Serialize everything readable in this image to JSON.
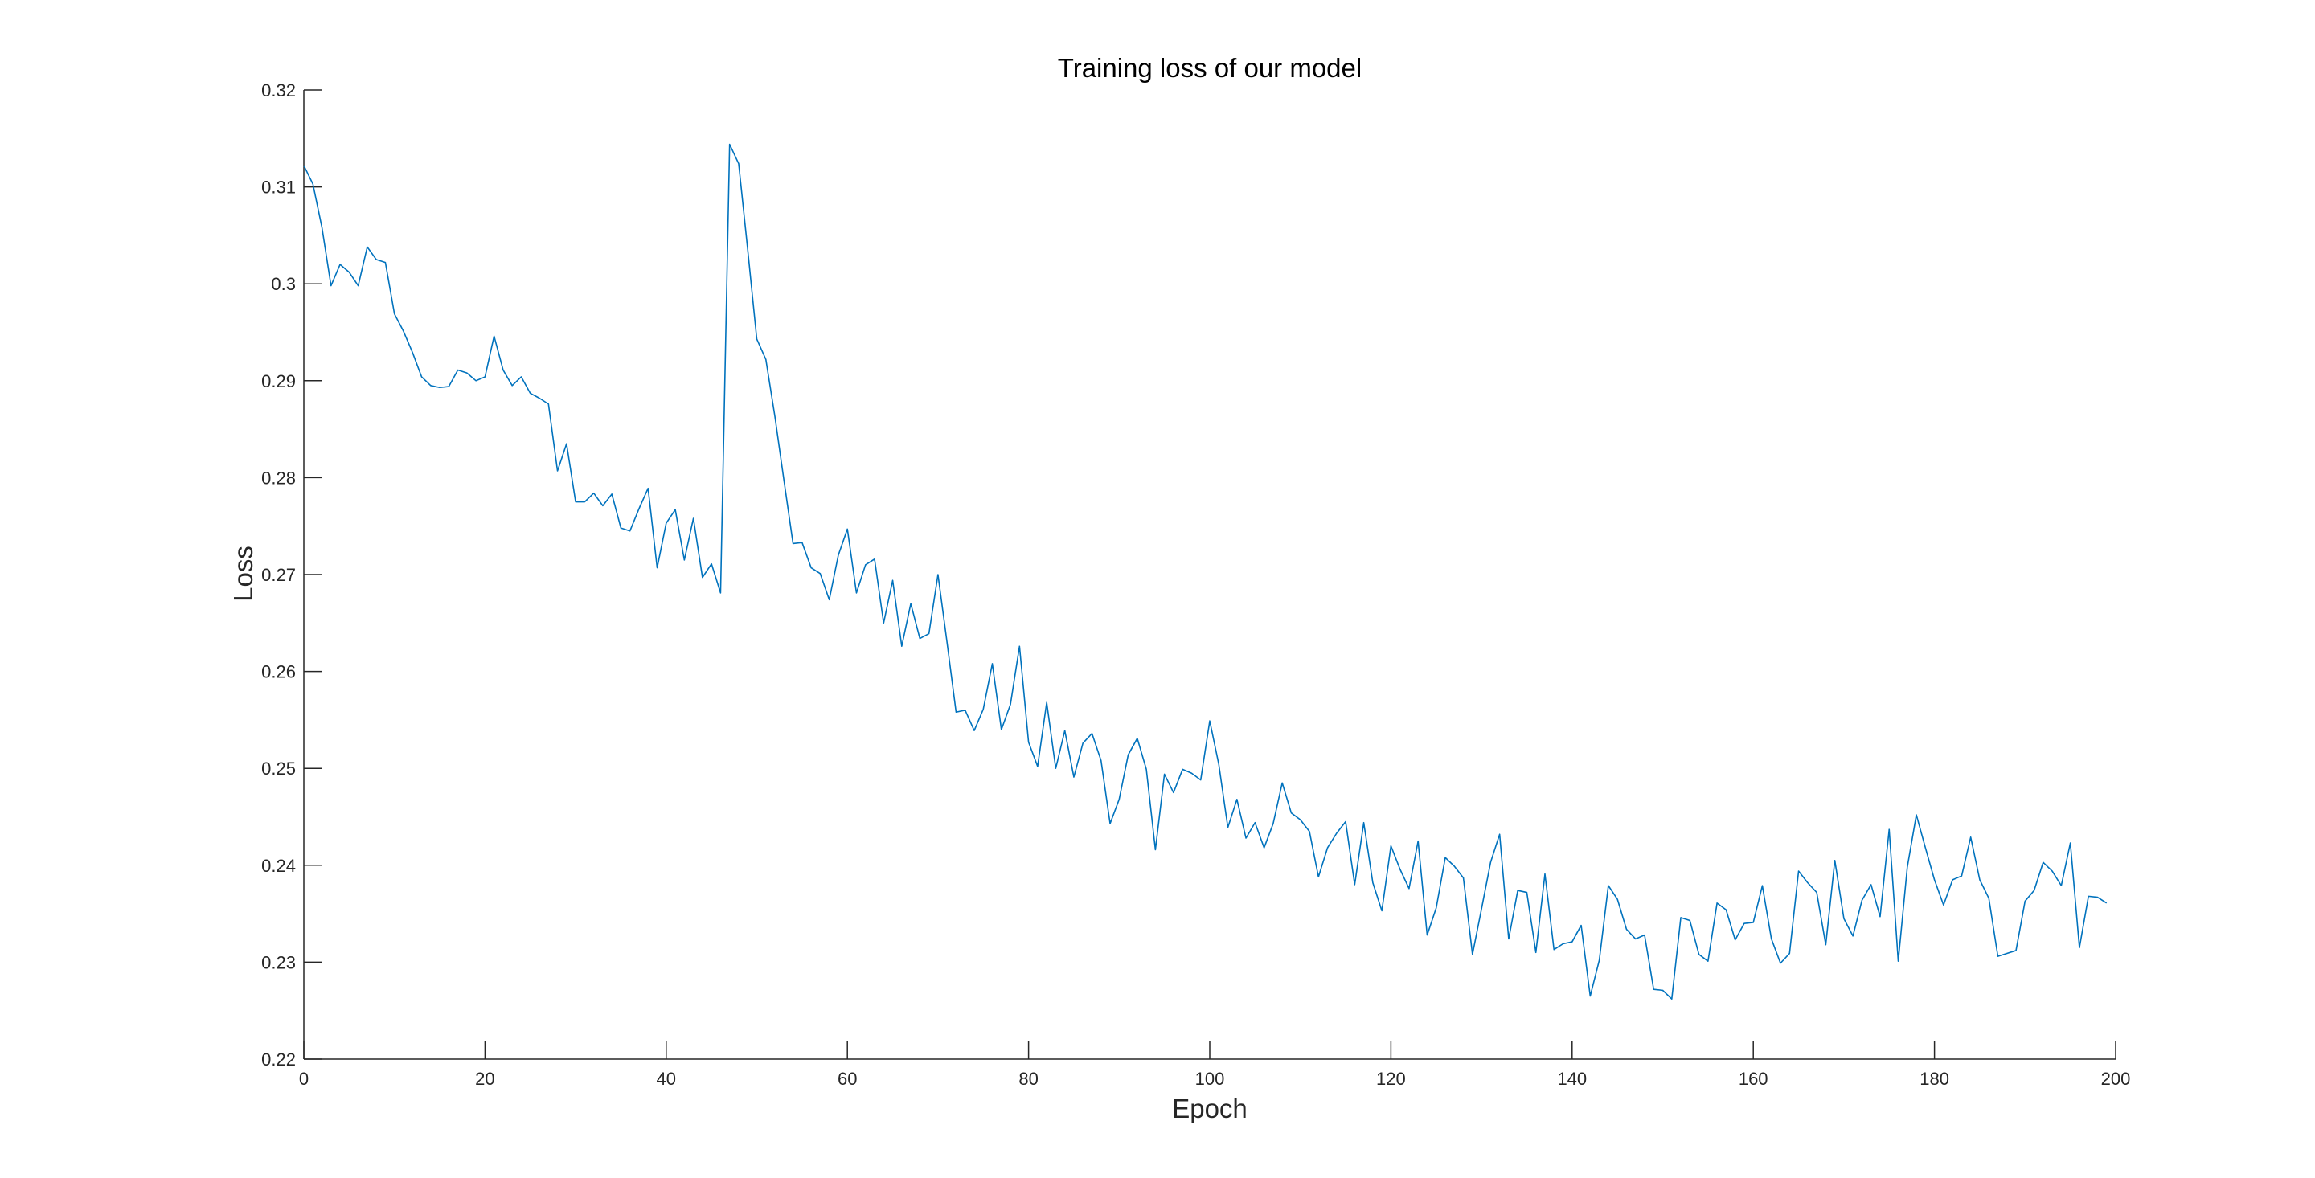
{
  "chart_data": {
    "type": "line",
    "title": "Training loss of our model",
    "xlabel": "Epoch",
    "ylabel": "Loss",
    "xlim": [
      0,
      200
    ],
    "ylim": [
      0.22,
      0.32
    ],
    "xticks": [
      0,
      20,
      40,
      60,
      80,
      100,
      120,
      140,
      160,
      180,
      200
    ],
    "xtick_labels": [
      "0",
      "20",
      "40",
      "60",
      "80",
      "100",
      "120",
      "140",
      "160",
      "180",
      "200"
    ],
    "yticks": [
      0.22,
      0.23,
      0.24,
      0.25,
      0.26,
      0.27,
      0.28,
      0.29,
      0.3,
      0.31,
      0.32
    ],
    "ytick_labels": [
      "0.22",
      "0.23",
      "0.24",
      "0.25",
      "0.26",
      "0.27",
      "0.28",
      "0.29",
      "0.3",
      "0.31",
      "0.32"
    ],
    "grid": false,
    "line_color": "#0072BD",
    "axis_color": "#262626",
    "series": [
      {
        "x": [
          0,
          1,
          2,
          3,
          4,
          5,
          6,
          7,
          8,
          9,
          10,
          11,
          12,
          13,
          14,
          15,
          16,
          17,
          18,
          19,
          20,
          21,
          22,
          23,
          24,
          25,
          26,
          27,
          28,
          29,
          30,
          31,
          32,
          33,
          34,
          35,
          36,
          37,
          38,
          39,
          40,
          41,
          42,
          43,
          44,
          45,
          46,
          47,
          48,
          49,
          50,
          51,
          52,
          53,
          54,
          55,
          56,
          57,
          58,
          59,
          60,
          61,
          62,
          63,
          64,
          65,
          66,
          67,
          68,
          69,
          70,
          71,
          72,
          73,
          74,
          75,
          76,
          77,
          78,
          79,
          80,
          81,
          82,
          83,
          84,
          85,
          86,
          87,
          88,
          89,
          90,
          91,
          92,
          93,
          94,
          95,
          96,
          97,
          98,
          99,
          100,
          101,
          102,
          103,
          104,
          105,
          106,
          107,
          108,
          109,
          110,
          111,
          112,
          113,
          114,
          115,
          116,
          117,
          118,
          119,
          120,
          121,
          122,
          123,
          124,
          125,
          126,
          127,
          128,
          129,
          130,
          131,
          132,
          133,
          134,
          135,
          136,
          137,
          138,
          139,
          140,
          141,
          142,
          143,
          144,
          145,
          146,
          147,
          148,
          149,
          150,
          151,
          152,
          153,
          154,
          155,
          156,
          157,
          158,
          159,
          160,
          161,
          162,
          163,
          164,
          165,
          166,
          167,
          168,
          169,
          170,
          171,
          172,
          173,
          174,
          175,
          176,
          177,
          178,
          179,
          180,
          181,
          182,
          183,
          184,
          185,
          186,
          187,
          188,
          189,
          190,
          191,
          192,
          193,
          194,
          195,
          196,
          197,
          198,
          199
        ],
        "y": [
          0.3122,
          0.3103,
          0.3058,
          0.2998,
          0.302,
          0.3012,
          0.2998,
          0.3038,
          0.3025,
          0.3022,
          0.2969,
          0.2951,
          0.2929,
          0.2904,
          0.2895,
          0.2893,
          0.2894,
          0.2911,
          0.2908,
          0.29,
          0.2904,
          0.2946,
          0.2911,
          0.2895,
          0.2904,
          0.2887,
          0.2882,
          0.2876,
          0.2807,
          0.2835,
          0.2775,
          0.2775,
          0.2784,
          0.2771,
          0.2783,
          0.2748,
          0.2745,
          0.2768,
          0.2789,
          0.2707,
          0.2753,
          0.2767,
          0.2715,
          0.2758,
          0.2697,
          0.2711,
          0.2681,
          0.3144,
          0.3124,
          0.3035,
          0.2943,
          0.2922,
          0.2863,
          0.2797,
          0.2732,
          0.2733,
          0.2707,
          0.2701,
          0.2674,
          0.272,
          0.2747,
          0.2681,
          0.271,
          0.2716,
          0.265,
          0.2694,
          0.2626,
          0.267,
          0.2634,
          0.2639,
          0.27,
          0.263,
          0.2558,
          0.256,
          0.2539,
          0.2561,
          0.2608,
          0.254,
          0.2566,
          0.2626,
          0.2527,
          0.2502,
          0.2568,
          0.25,
          0.2539,
          0.2491,
          0.2526,
          0.2536,
          0.2508,
          0.2443,
          0.2468,
          0.2514,
          0.2531,
          0.2499,
          0.2416,
          0.2494,
          0.2475,
          0.2499,
          0.2495,
          0.2488,
          0.2549,
          0.2504,
          0.2439,
          0.2468,
          0.2428,
          0.2444,
          0.2418,
          0.2443,
          0.2485,
          0.2454,
          0.2447,
          0.2435,
          0.2388,
          0.2418,
          0.2433,
          0.2445,
          0.238,
          0.2444,
          0.2382,
          0.2353,
          0.242,
          0.2396,
          0.2376,
          0.2425,
          0.2328,
          0.2356,
          0.2408,
          0.2399,
          0.2387,
          0.2308,
          0.2355,
          0.2403,
          0.2432,
          0.2324,
          0.2374,
          0.2372,
          0.231,
          0.2391,
          0.2313,
          0.2319,
          0.2321,
          0.2338,
          0.2265,
          0.2302,
          0.2379,
          0.2365,
          0.2334,
          0.2324,
          0.2328,
          0.2272,
          0.2271,
          0.2262,
          0.2346,
          0.2343,
          0.2308,
          0.2301,
          0.2361,
          0.2354,
          0.2323,
          0.234,
          0.2341,
          0.2379,
          0.2324,
          0.2299,
          0.2309,
          0.2394,
          0.2382,
          0.2372,
          0.2318,
          0.2405,
          0.2345,
          0.2327,
          0.2364,
          0.238,
          0.2347,
          0.2437,
          0.2301,
          0.2398,
          0.2452,
          0.2418,
          0.2385,
          0.2359,
          0.2385,
          0.2389,
          0.2429,
          0.2385,
          0.2366,
          0.2306,
          0.2309,
          0.2312,
          0.2363,
          0.2374,
          0.2403,
          0.2394,
          0.2379,
          0.2423,
          0.2315,
          0.2368,
          0.2367,
          0.2361
        ]
      }
    ]
  }
}
